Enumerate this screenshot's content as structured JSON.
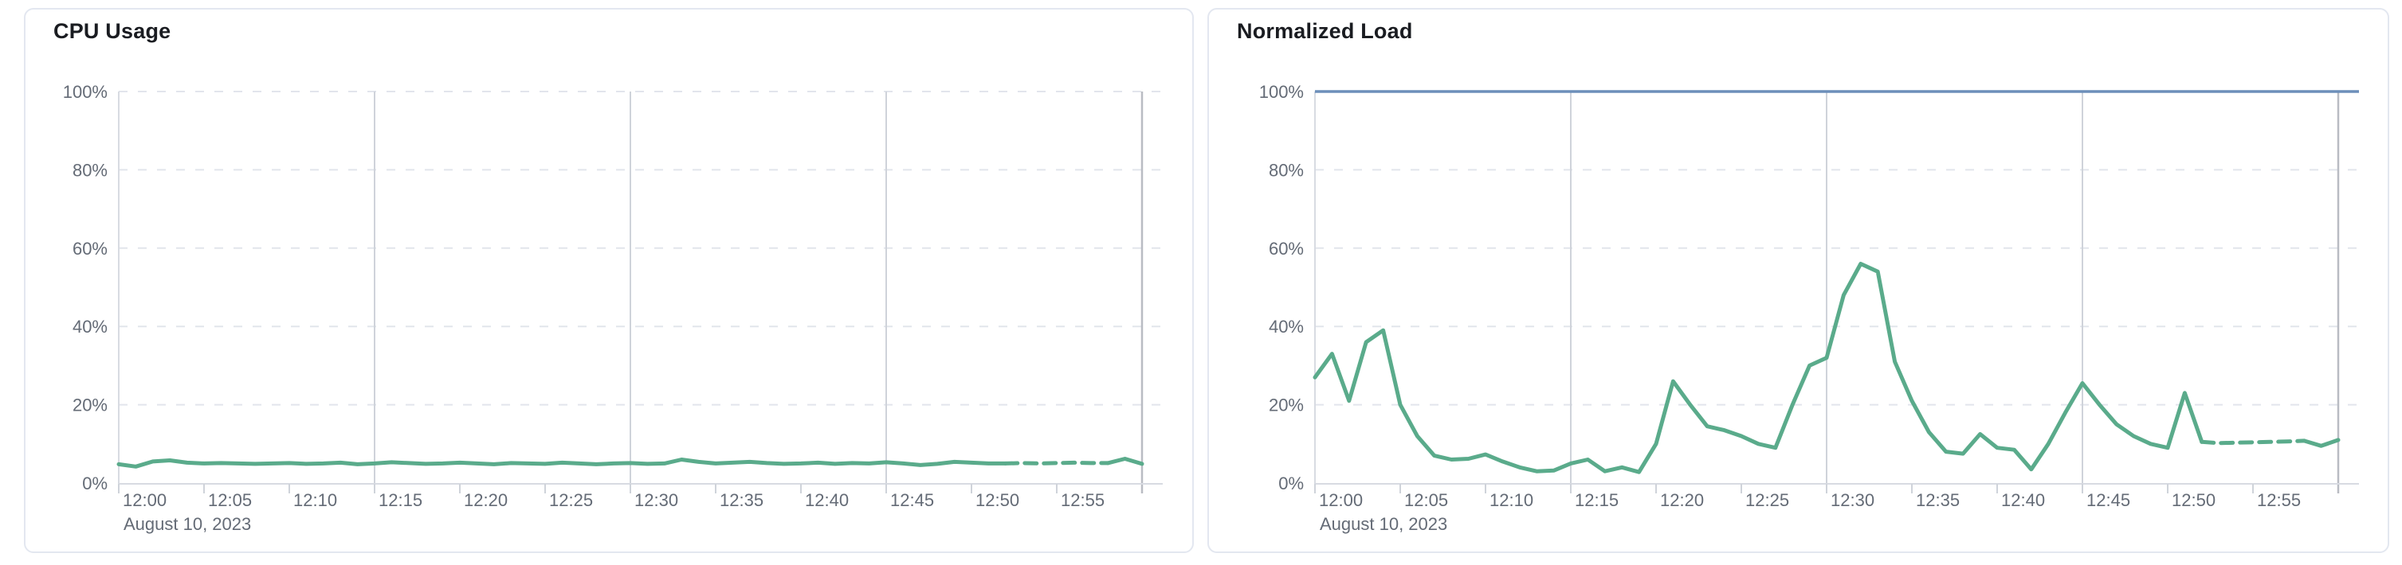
{
  "cards": [
    {
      "title": "CPU Usage"
    },
    {
      "title": "Normalized Load"
    }
  ],
  "theme": {
    "card_background": "#ffffff",
    "card_border": "#e3e7f0",
    "title_color": "#1a1c21",
    "axis_label_color": "#646b76",
    "grid_dashed_color": "#e2e5ec",
    "grid_vertical_color": "#cfd3da",
    "end_marker_color": "#b9bcc3",
    "axis_line_color": "#d8dbe2",
    "series_green": "#5aab8b",
    "threshold_blue": "#6d8fba"
  },
  "chart_data": [
    {
      "type": "line",
      "title": "CPU Usage",
      "x_unit": "minute",
      "x_start": "12:00",
      "x_step_min": 1,
      "x_end": "13:00",
      "date_label": "August 10, 2023",
      "ylim": [
        0,
        100
      ],
      "x_tick_labels": [
        "12:00",
        "12:05",
        "12:10",
        "12:15",
        "12:20",
        "12:25",
        "12:30",
        "12:35",
        "12:40",
        "12:45",
        "12:50",
        "12:55"
      ],
      "y_tick_labels": [
        "0%",
        "20%",
        "40%",
        "60%",
        "80%",
        "100%"
      ],
      "grid": {
        "horizontal_pct": [
          20,
          40,
          60,
          80,
          100
        ],
        "vertical_minutes": [
          15,
          30,
          45
        ],
        "end_marker_minute": 60
      },
      "threshold_line": null,
      "series": [
        {
          "name": "cpu-usage",
          "color": "#5aab8b",
          "values": [
            4.8,
            4.2,
            5.5,
            5.8,
            5.2,
            5.0,
            5.1,
            5.0,
            4.9,
            5.0,
            5.1,
            4.9,
            5.0,
            5.2,
            4.8,
            5.0,
            5.3,
            5.1,
            4.9,
            5.0,
            5.2,
            5.0,
            4.8,
            5.1,
            5.0,
            4.9,
            5.2,
            5.0,
            4.8,
            5.0,
            5.1,
            4.9,
            5.0,
            6.0,
            5.4,
            5.0,
            5.2,
            5.4,
            5.1,
            4.9,
            5.0,
            5.2,
            4.9,
            5.1,
            5.0,
            5.3,
            5.0,
            4.6,
            4.9,
            5.4,
            5.2,
            5.0,
            5.0,
            5.1,
            5.0,
            5.1,
            5.2,
            5.1,
            5.1,
            6.2,
            4.9
          ],
          "segments": [
            {
              "from": 0,
              "to": 52,
              "dashed": false
            },
            {
              "from": 52,
              "to": 58,
              "dashed": true
            },
            {
              "from": 58,
              "to": 60,
              "dashed": false
            }
          ]
        }
      ]
    },
    {
      "type": "line",
      "title": "Normalized Load",
      "x_unit": "minute",
      "x_start": "12:00",
      "x_step_min": 1,
      "x_end": "13:00",
      "date_label": "August 10, 2023",
      "ylim": [
        0,
        100
      ],
      "x_tick_labels": [
        "12:00",
        "12:05",
        "12:10",
        "12:15",
        "12:20",
        "12:25",
        "12:30",
        "12:35",
        "12:40",
        "12:45",
        "12:50",
        "12:55"
      ],
      "y_tick_labels": [
        "0%",
        "20%",
        "40%",
        "60%",
        "80%",
        "100%"
      ],
      "grid": {
        "horizontal_pct": [
          20,
          40,
          60,
          80,
          100
        ],
        "vertical_minutes": [
          15,
          30,
          45
        ],
        "end_marker_minute": 60
      },
      "threshold_line": {
        "value_pct": 100,
        "color": "#6d8fba"
      },
      "series": [
        {
          "name": "normalized-load",
          "color": "#5aab8b",
          "values": [
            27,
            33,
            21,
            36,
            39,
            20,
            12,
            7,
            6,
            6.2,
            7.3,
            5.5,
            4,
            3,
            3.2,
            5,
            6,
            3,
            4,
            2.8,
            10,
            26,
            20,
            14.5,
            13.5,
            12,
            10,
            9,
            20,
            30,
            32,
            48,
            56,
            54,
            31,
            21,
            13,
            8,
            7.5,
            12.5,
            9,
            8.5,
            3.5,
            10,
            18,
            25.5,
            20,
            15,
            12,
            10,
            9,
            23,
            10.5,
            10.2,
            10.3,
            10.4,
            10.5,
            10.6,
            10.8,
            9.5,
            11
          ],
          "segments": [
            {
              "from": 0,
              "to": 52,
              "dashed": false
            },
            {
              "from": 52,
              "to": 58,
              "dashed": true
            },
            {
              "from": 58,
              "to": 60,
              "dashed": false
            }
          ]
        }
      ]
    }
  ]
}
